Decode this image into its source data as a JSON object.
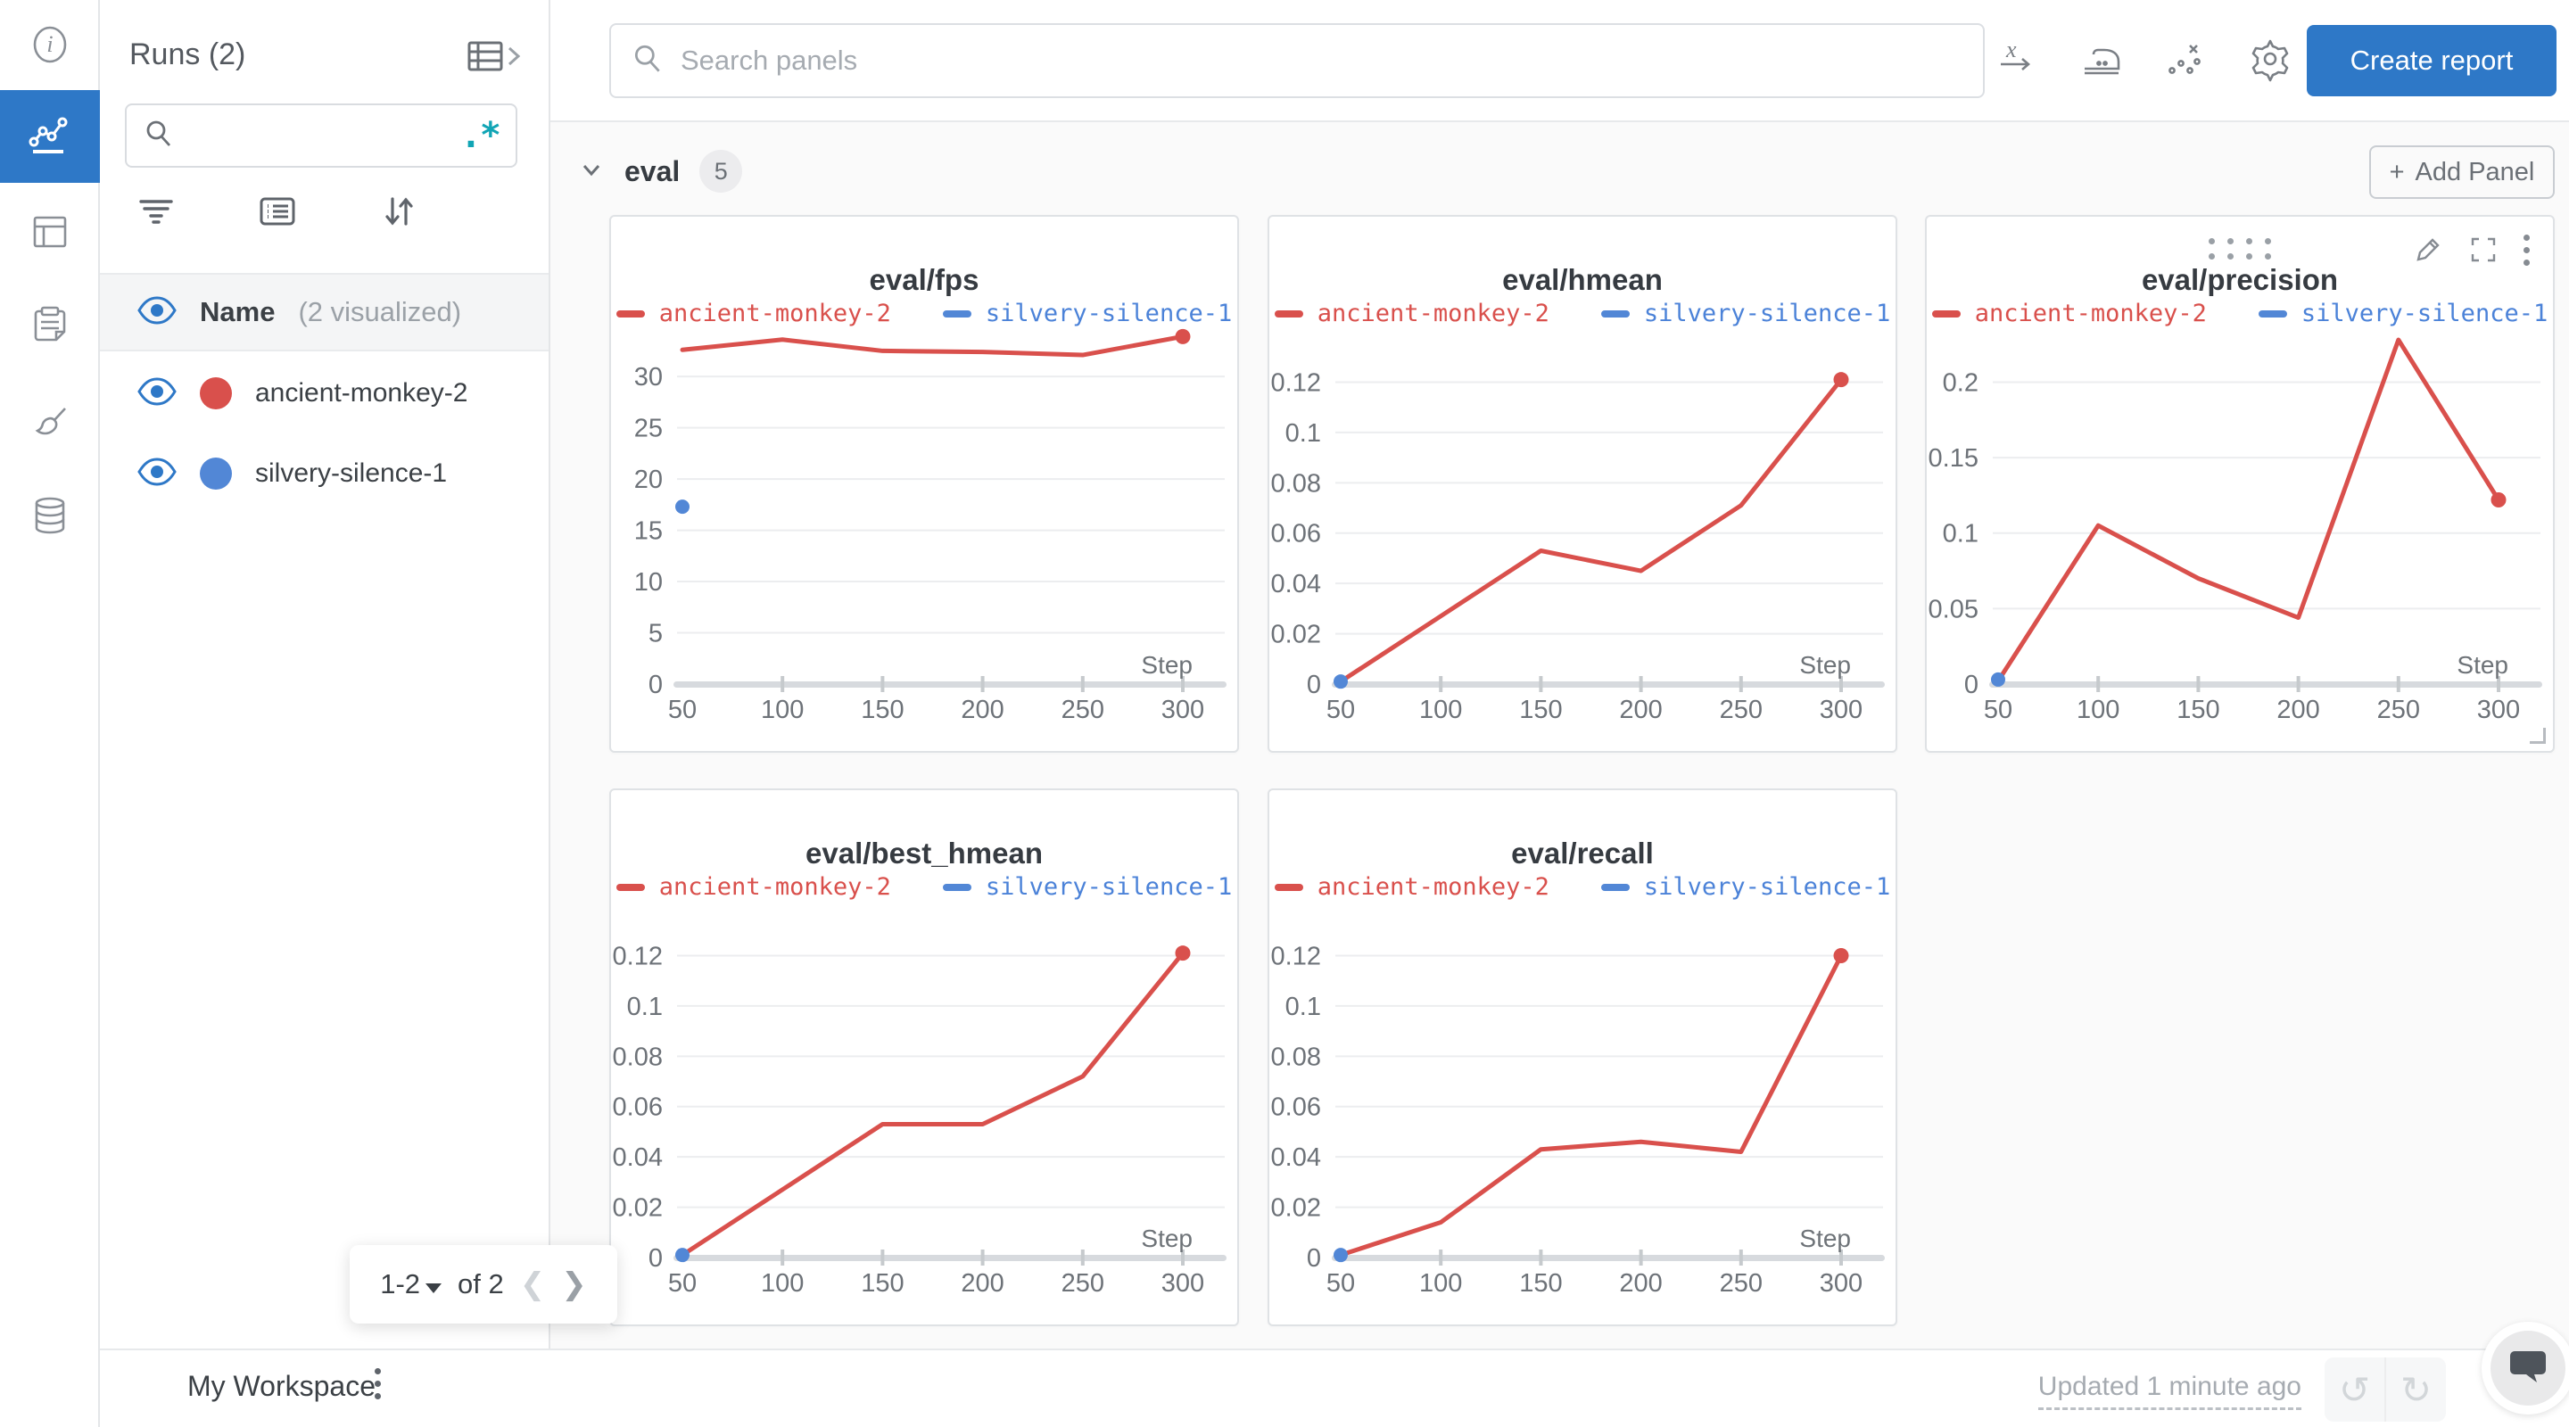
{
  "colors": {
    "accent_blue": "#2e78c7",
    "run_red": "#d9504c",
    "run_blue": "#5287d6",
    "legend_blue_text": "#4b82d8",
    "regex_teal": "#11a5b5",
    "grid_line": "#ecedef",
    "axis_band": "#d7dade",
    "tick_text": "#6d7278"
  },
  "nav_rail": {
    "items": [
      {
        "icon": "info-icon",
        "selected": false
      },
      {
        "icon": "line-chart-icon",
        "selected": true
      },
      {
        "icon": "panels-table-icon",
        "selected": false
      },
      {
        "icon": "clipboard-icon",
        "selected": false
      },
      {
        "icon": "brush-icon",
        "selected": false
      },
      {
        "icon": "database-icon",
        "selected": false
      }
    ]
  },
  "runs_panel": {
    "title": "Runs (2)",
    "table_expand_icon": "table-chevron-icon",
    "search_value": "",
    "regex_glyph": ".*",
    "tools": [
      "filter-icon",
      "list-icon",
      "sort-icon"
    ],
    "header_row": {
      "label": "Name",
      "sublabel": "(2 visualized)"
    },
    "runs": [
      {
        "name": "ancient-monkey-2",
        "color": "#d9504c",
        "visible": true
      },
      {
        "name": "silvery-silence-1",
        "color": "#5287d6",
        "visible": true
      }
    ],
    "pagination": {
      "range": "1-2",
      "of_label": "of 2"
    }
  },
  "topbar": {
    "search_placeholder": "Search panels",
    "icons": [
      "x-axis-icon",
      "smoothing-iron-icon",
      "outlier-scatter-icon",
      "settings-gear-icon"
    ],
    "create_report_label": "Create report"
  },
  "section": {
    "name": "eval",
    "count": "5",
    "add_panel_label": "Add Panel",
    "add_panel_plus": "+"
  },
  "footer": {
    "workspace_title": "My Workspace",
    "updated_text": "Updated 1 minute ago",
    "undo_glyph": "↺",
    "redo_glyph": "↻"
  },
  "chart_data": [
    {
      "type": "line",
      "title": "eval/fps",
      "xlabel": "Step",
      "x": [
        50,
        100,
        150,
        200,
        250,
        300
      ],
      "xticks": [
        50,
        100,
        150,
        200,
        250,
        300
      ],
      "xlim": [
        50,
        322
      ],
      "ylim": [
        0,
        34.8
      ],
      "grid": "horizontal",
      "legend_position": "top",
      "yticks": [
        0,
        5,
        10,
        15,
        20,
        25,
        30
      ],
      "ytick_labels": [
        "0",
        "5",
        "10",
        "15",
        "20",
        "25",
        "30"
      ],
      "series": [
        {
          "name": "ancient-monkey-2",
          "color": "#d9504c",
          "values": [
            32.6,
            33.6,
            32.5,
            32.4,
            32.1,
            33.9
          ],
          "end_marker": true
        },
        {
          "name": "silvery-silence-1",
          "color": "#5287d6",
          "point_only": true,
          "x": 50,
          "value": 17.3
        }
      ]
    },
    {
      "type": "line",
      "title": "eval/hmean",
      "xlabel": "Step",
      "x": [
        50,
        100,
        150,
        200,
        250,
        300
      ],
      "xticks": [
        50,
        100,
        150,
        200,
        250,
        300
      ],
      "xlim": [
        50,
        322
      ],
      "ylim": [
        0,
        0.1418
      ],
      "grid": "horizontal",
      "legend_position": "top",
      "yticks": [
        0,
        0.02,
        0.04,
        0.06,
        0.08,
        0.1,
        0.12
      ],
      "ytick_labels": [
        "0",
        "0.02",
        "0.04",
        "0.06",
        "0.08",
        "0.1",
        "0.12"
      ],
      "series": [
        {
          "name": "ancient-monkey-2",
          "color": "#d9504c",
          "values": [
            0.001,
            0.027,
            0.053,
            0.045,
            0.071,
            0.121
          ],
          "end_marker": true
        },
        {
          "name": "silvery-silence-1",
          "color": "#5287d6",
          "point_only": true,
          "x": 50,
          "value": 0.001
        }
      ]
    },
    {
      "type": "line",
      "title": "eval/precision",
      "xlabel": "Step",
      "x": [
        50,
        100,
        150,
        200,
        250,
        300
      ],
      "xticks": [
        50,
        100,
        150,
        200,
        250,
        300
      ],
      "xlim": [
        50,
        322
      ],
      "ylim": [
        0,
        0.2363
      ],
      "grid": "horizontal",
      "legend_position": "top",
      "yticks": [
        0,
        0.05,
        0.1,
        0.15,
        0.2
      ],
      "ytick_labels": [
        "0",
        "0.05",
        "0.1",
        "0.15",
        "0.2"
      ],
      "series": [
        {
          "name": "ancient-monkey-2",
          "color": "#d9504c",
          "values": [
            0.002,
            0.105,
            0.07,
            0.044,
            0.228,
            0.122
          ],
          "end_marker": true
        },
        {
          "name": "silvery-silence-1",
          "color": "#5287d6",
          "point_only": true,
          "x": 50,
          "value": 0.003
        }
      ]
    },
    {
      "type": "line",
      "title": "eval/best_hmean",
      "xlabel": "Step",
      "x": [
        50,
        100,
        150,
        200,
        250,
        300
      ],
      "xticks": [
        50,
        100,
        150,
        200,
        250,
        300
      ],
      "xlim": [
        50,
        322
      ],
      "ylim": [
        0,
        0.1418
      ],
      "grid": "horizontal",
      "legend_position": "top",
      "yticks": [
        0,
        0.02,
        0.04,
        0.06,
        0.08,
        0.1,
        0.12
      ],
      "ytick_labels": [
        "0",
        "0.02",
        "0.04",
        "0.06",
        "0.08",
        "0.1",
        "0.12"
      ],
      "series": [
        {
          "name": "ancient-monkey-2",
          "color": "#d9504c",
          "values": [
            0.001,
            0.027,
            0.053,
            0.053,
            0.072,
            0.121
          ],
          "end_marker": true
        },
        {
          "name": "silvery-silence-1",
          "color": "#5287d6",
          "point_only": true,
          "x": 50,
          "value": 0.001
        }
      ]
    },
    {
      "type": "line",
      "title": "eval/recall",
      "xlabel": "Step",
      "x": [
        50,
        100,
        150,
        200,
        250,
        300
      ],
      "xticks": [
        50,
        100,
        150,
        200,
        250,
        300
      ],
      "xlim": [
        50,
        322
      ],
      "ylim": [
        0,
        0.1418
      ],
      "grid": "horizontal",
      "legend_position": "top",
      "yticks": [
        0,
        0.02,
        0.04,
        0.06,
        0.08,
        0.1,
        0.12
      ],
      "ytick_labels": [
        "0",
        "0.02",
        "0.04",
        "0.06",
        "0.08",
        "0.1",
        "0.12"
      ],
      "series": [
        {
          "name": "ancient-monkey-2",
          "color": "#d9504c",
          "values": [
            0.001,
            0.014,
            0.043,
            0.046,
            0.042,
            0.12
          ],
          "end_marker": true
        },
        {
          "name": "silvery-silence-1",
          "color": "#5287d6",
          "point_only": true,
          "x": 50,
          "value": 0.001
        }
      ]
    }
  ]
}
